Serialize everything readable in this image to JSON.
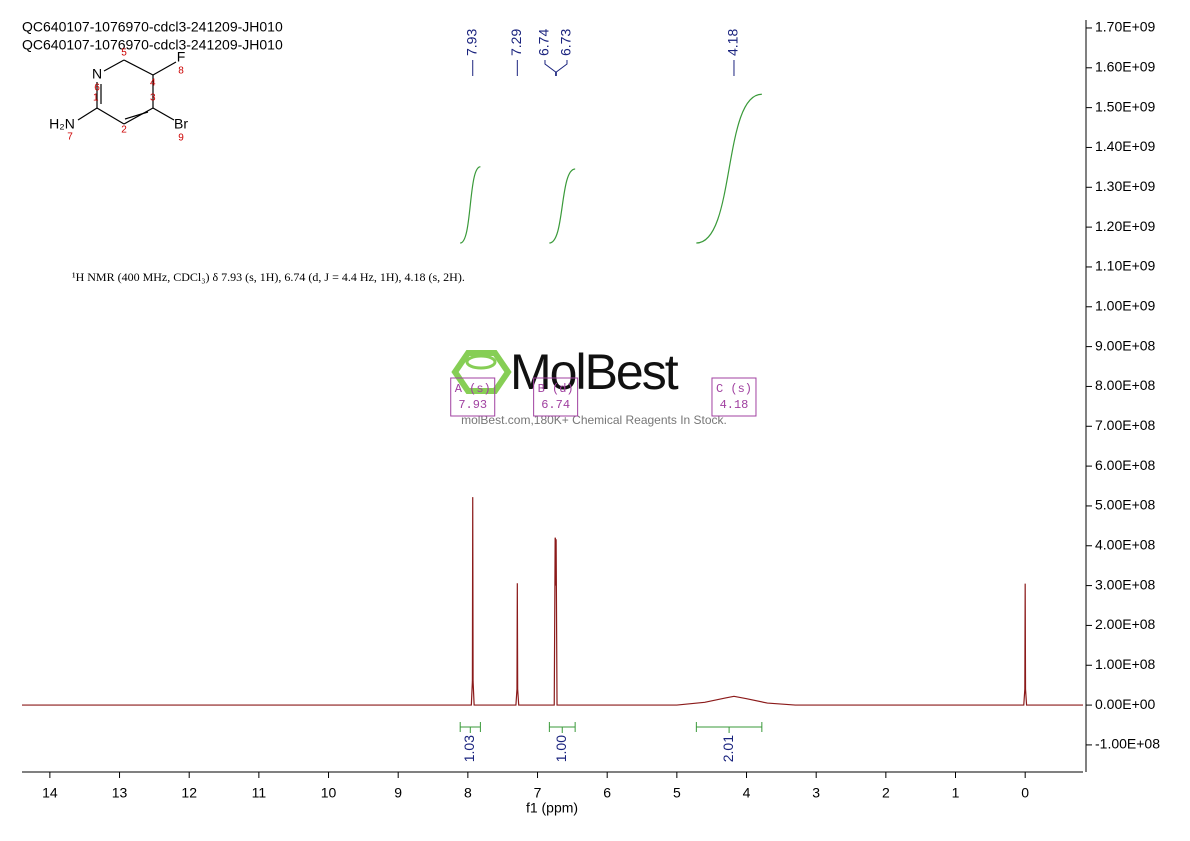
{
  "chart_data": {
    "type": "line",
    "titles": [
      "QC640107-1076970-cdcl3-241209-JH010",
      "QC640107-1076970-cdcl3-241209-JH010"
    ],
    "description": "¹H NMR (400 MHz, CDCl₃) δ 7.93 (s, 1H), 6.74 (d, J = 4.4 Hz, 1H), 4.18 (s, 2H).",
    "x_label": "f1 (ppm)",
    "color": "#8b1a1a",
    "x": [
      14.4,
      8.2,
      7.95,
      7.935,
      7.93,
      7.925,
      7.91,
      7.31,
      7.295,
      7.29,
      7.285,
      7.27,
      6.76,
      6.747,
      6.744,
      6.74,
      6.736,
      6.733,
      6.72,
      5.0,
      4.6,
      4.3,
      4.18,
      4.0,
      3.7,
      3.3,
      0.02,
      0.005,
      0,
      -0.005,
      -0.02,
      -0.83
    ],
    "values": [
      0,
      0,
      0,
      60000000,
      522000000,
      60000000,
      0,
      0,
      40000000,
      306000000,
      40000000,
      0,
      0,
      419000000,
      419000000,
      300000000,
      415000000,
      415000000,
      0,
      0,
      7000000,
      18000000,
      22000000,
      16000000,
      5000000,
      0,
      0,
      40000000,
      305000000,
      40000000,
      0,
      0
    ],
    "xlim": [
      14.4,
      -0.83
    ],
    "ylim": [
      -168000000,
      1720000000
    ],
    "xticks": [
      14,
      13,
      12,
      11,
      10,
      9,
      8,
      7,
      6,
      5,
      4,
      3,
      2,
      1,
      0
    ],
    "yticks": [
      {
        "value": -100000000,
        "label": "-1.00E+08"
      },
      {
        "value": 0,
        "label": "0.00E+00"
      },
      {
        "value": 100000000,
        "label": "1.00E+08"
      },
      {
        "value": 200000000,
        "label": "2.00E+08"
      },
      {
        "value": 300000000,
        "label": "3.00E+08"
      },
      {
        "value": 400000000,
        "label": "4.00E+08"
      },
      {
        "value": 500000000,
        "label": "5.00E+08"
      },
      {
        "value": 600000000,
        "label": "6.00E+08"
      },
      {
        "value": 700000000,
        "label": "7.00E+08"
      },
      {
        "value": 800000000,
        "label": "8.00E+08"
      },
      {
        "value": 900000000,
        "label": "9.00E+08"
      },
      {
        "value": 1000000000,
        "label": "1.00E+09"
      },
      {
        "value": 1100000000,
        "label": "1.10E+09"
      },
      {
        "value": 1200000000,
        "label": "1.20E+09"
      },
      {
        "value": 1300000000,
        "label": "1.30E+09"
      },
      {
        "value": 1400000000,
        "label": "1.40E+09"
      },
      {
        "value": 1500000000,
        "label": "1.50E+09"
      },
      {
        "value": 1600000000,
        "label": "1.60E+09"
      },
      {
        "value": 1700000000,
        "label": "1.70E+09"
      }
    ],
    "peak_labels": [
      7.93,
      7.29,
      6.74,
      6.73,
      4.18
    ],
    "peak_label_color": "#1a237e",
    "multiplets": {
      "names": [
        "A (s)",
        "B (d)",
        "C (s)"
      ],
      "shifts": [
        7.93,
        6.74,
        4.18
      ],
      "color": "#a040a0"
    },
    "integrals": {
      "ranges": [
        [
          8.11,
          7.82
        ],
        [
          6.83,
          6.46
        ],
        [
          4.72,
          3.78
        ]
      ],
      "values": [
        1.03,
        1.0,
        2.01
      ],
      "value_labels": [
        "1.03",
        "1.00",
        "2.01"
      ],
      "color": "#3a9a3a"
    },
    "structure": {
      "atoms": [
        "N",
        "F",
        "Br",
        "H₂N"
      ],
      "numbers": [
        "1",
        "2",
        "3",
        "4",
        "5",
        "6",
        "7",
        "8",
        "9"
      ]
    },
    "watermark": {
      "logo": "MolBest",
      "tagline": "molBest.com,180K+ Chemical Reagents In Stock."
    }
  }
}
